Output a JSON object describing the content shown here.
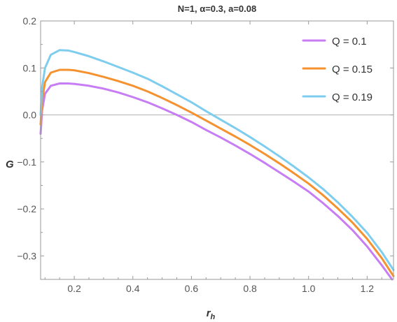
{
  "chart_data": {
    "type": "line",
    "title": "N=1, α=0.3, a=0.08",
    "xlabel": "r",
    "xlabel_sub": "h",
    "ylabel": "G",
    "xlim": [
      0.085,
      1.29
    ],
    "ylim": [
      -0.35,
      0.2
    ],
    "xticks": [
      0.2,
      0.4,
      0.6,
      0.8,
      1.0,
      1.2
    ],
    "xtick_labels": [
      "0.2",
      "0.4",
      "0.6",
      "0.8",
      "1.0",
      "1.2"
    ],
    "yticks": [
      0.2,
      0.1,
      0.0,
      -0.1,
      -0.2,
      -0.3
    ],
    "ytick_labels": [
      "0.2",
      "0.1",
      "0.0",
      "−0.1",
      "−0.2",
      "−0.3"
    ],
    "grid": false,
    "zero_line": true,
    "legend_position": "top-right",
    "series": [
      {
        "name": "Q = 0.1",
        "color": "#c77df3",
        "x": [
          0.085,
          0.09,
          0.1,
          0.12,
          0.15,
          0.18,
          0.2,
          0.25,
          0.3,
          0.35,
          0.4,
          0.45,
          0.5,
          0.55,
          0.6,
          0.65,
          0.7,
          0.75,
          0.8,
          0.85,
          0.9,
          0.95,
          1.0,
          1.05,
          1.1,
          1.15,
          1.2,
          1.25,
          1.285
        ],
        "y": [
          -0.04,
          0.01,
          0.045,
          0.062,
          0.067,
          0.067,
          0.066,
          0.062,
          0.056,
          0.048,
          0.038,
          0.027,
          0.014,
          0.0,
          -0.015,
          -0.032,
          -0.048,
          -0.065,
          -0.083,
          -0.102,
          -0.122,
          -0.142,
          -0.163,
          -0.188,
          -0.215,
          -0.245,
          -0.28,
          -0.32,
          -0.35
        ]
      },
      {
        "name": "Q = 0.15",
        "color": "#f5922f",
        "x": [
          0.085,
          0.09,
          0.1,
          0.12,
          0.15,
          0.18,
          0.2,
          0.25,
          0.3,
          0.35,
          0.4,
          0.45,
          0.5,
          0.55,
          0.6,
          0.65,
          0.7,
          0.75,
          0.8,
          0.85,
          0.9,
          0.95,
          1.0,
          1.05,
          1.1,
          1.15,
          1.2,
          1.25,
          1.29
        ],
        "y": [
          -0.02,
          0.03,
          0.07,
          0.09,
          0.096,
          0.096,
          0.095,
          0.089,
          0.081,
          0.072,
          0.062,
          0.05,
          0.036,
          0.021,
          0.005,
          -0.012,
          -0.029,
          -0.046,
          -0.064,
          -0.083,
          -0.103,
          -0.124,
          -0.146,
          -0.171,
          -0.199,
          -0.229,
          -0.264,
          -0.305,
          -0.343
        ]
      },
      {
        "name": "Q = 0.19",
        "color": "#7fcdee",
        "x": [
          0.085,
          0.09,
          0.1,
          0.12,
          0.15,
          0.18,
          0.2,
          0.25,
          0.3,
          0.35,
          0.4,
          0.45,
          0.5,
          0.55,
          0.6,
          0.65,
          0.7,
          0.75,
          0.8,
          0.85,
          0.9,
          0.95,
          1.0,
          1.05,
          1.1,
          1.15,
          1.2,
          1.25,
          1.29
        ],
        "y": [
          0.0,
          0.06,
          0.1,
          0.128,
          0.138,
          0.137,
          0.134,
          0.125,
          0.114,
          0.102,
          0.09,
          0.077,
          0.061,
          0.044,
          0.027,
          0.008,
          -0.01,
          -0.028,
          -0.047,
          -0.067,
          -0.088,
          -0.11,
          -0.133,
          -0.158,
          -0.186,
          -0.217,
          -0.251,
          -0.292,
          -0.33
        ]
      }
    ]
  }
}
